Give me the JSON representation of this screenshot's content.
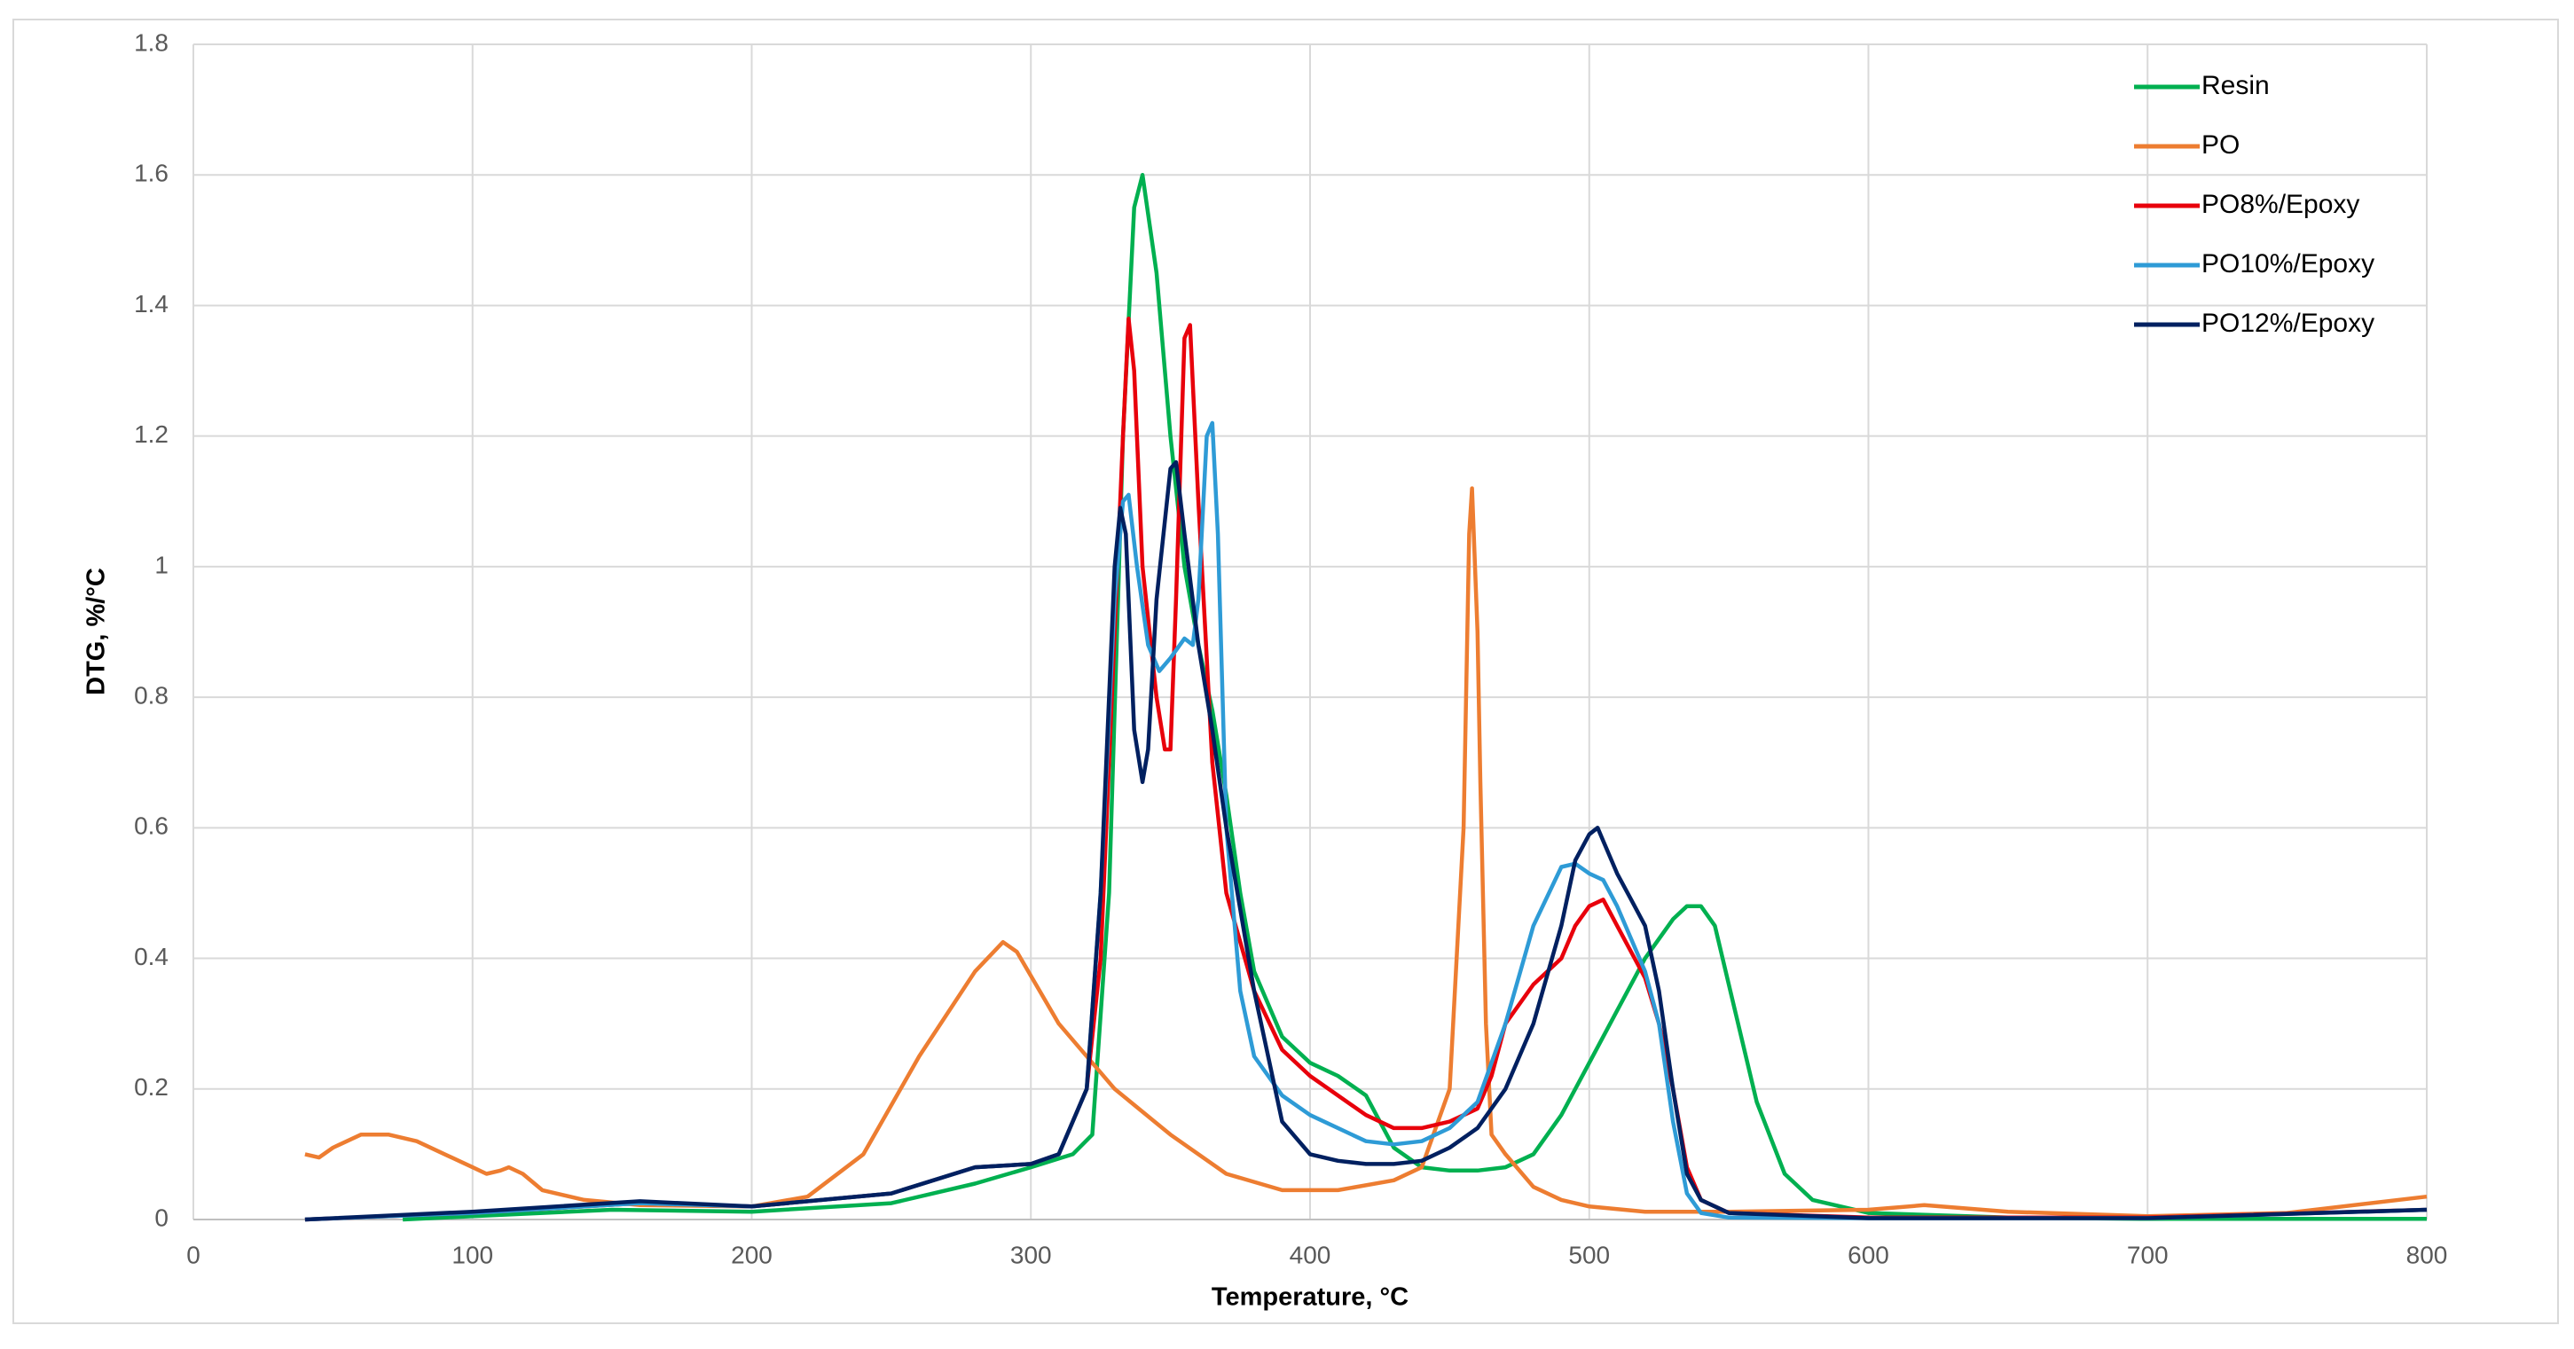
{
  "chart_data": {
    "type": "line",
    "xlabel": "Temperature, °C",
    "ylabel": "DTG, %/°C",
    "xlim": [
      0,
      800
    ],
    "xticks": [
      0,
      100,
      200,
      300,
      400,
      500,
      600,
      700,
      800
    ],
    "ylim": [
      0,
      1.8
    ],
    "yticks": [
      0,
      0.2,
      0.4,
      0.6,
      0.8,
      1,
      1.2,
      1.4,
      1.6,
      1.8
    ],
    "grid": true,
    "legend": "upper right",
    "series": [
      {
        "name": "Resin",
        "color": "#00b050",
        "x": [
          75,
          100,
          150,
          200,
          250,
          280,
          300,
          315,
          322,
          328,
          333,
          337,
          340,
          345,
          350,
          355,
          360,
          365,
          370,
          375,
          380,
          390,
          400,
          410,
          420,
          425,
          430,
          440,
          450,
          460,
          470,
          480,
          490,
          500,
          510,
          520,
          530,
          535,
          540,
          545,
          550,
          560,
          570,
          580,
          600,
          650,
          700,
          800
        ],
        "values": [
          0,
          0.005,
          0.015,
          0.012,
          0.025,
          0.055,
          0.08,
          0.1,
          0.13,
          0.5,
          1.2,
          1.55,
          1.6,
          1.45,
          1.2,
          1.0,
          0.88,
          0.78,
          0.65,
          0.5,
          0.38,
          0.28,
          0.24,
          0.22,
          0.19,
          0.15,
          0.11,
          0.08,
          0.075,
          0.075,
          0.08,
          0.1,
          0.16,
          0.24,
          0.32,
          0.4,
          0.46,
          0.48,
          0.48,
          0.45,
          0.36,
          0.18,
          0.07,
          0.03,
          0.01,
          0.003,
          0.001,
          0.001
        ]
      },
      {
        "name": "PO",
        "color": "#ed7d31",
        "x": [
          40,
          45,
          50,
          60,
          70,
          80,
          90,
          100,
          105,
          110,
          113,
          118,
          125,
          140,
          160,
          200,
          220,
          240,
          260,
          280,
          290,
          295,
          310,
          330,
          350,
          370,
          390,
          410,
          430,
          440,
          450,
          455,
          457,
          458,
          460,
          461,
          463,
          465,
          470,
          480,
          490,
          500,
          520,
          550,
          600,
          620,
          650,
          700,
          750,
          800
        ],
        "values": [
          0.1,
          0.095,
          0.11,
          0.13,
          0.13,
          0.12,
          0.1,
          0.08,
          0.07,
          0.075,
          0.08,
          0.07,
          0.045,
          0.03,
          0.022,
          0.02,
          0.035,
          0.1,
          0.25,
          0.38,
          0.425,
          0.41,
          0.3,
          0.2,
          0.13,
          0.07,
          0.045,
          0.045,
          0.06,
          0.08,
          0.2,
          0.6,
          1.05,
          1.12,
          0.9,
          0.67,
          0.3,
          0.13,
          0.1,
          0.05,
          0.03,
          0.02,
          0.012,
          0.012,
          0.015,
          0.022,
          0.012,
          0.005,
          0.01,
          0.035
        ]
      },
      {
        "name": "PO8%/Epoxy",
        "color": "#e8000b",
        "x": [
          40,
          100,
          160,
          200,
          250,
          280,
          300,
          310,
          320,
          325,
          330,
          333,
          335,
          337,
          340,
          345,
          348,
          350,
          352,
          355,
          357,
          360,
          365,
          370,
          380,
          390,
          400,
          420,
          430,
          440,
          450,
          460,
          465,
          470,
          480,
          490,
          495,
          500,
          505,
          510,
          520,
          525,
          530,
          535,
          540,
          550,
          600,
          700,
          800
        ],
        "values": [
          0,
          0.01,
          0.025,
          0.02,
          0.04,
          0.08,
          0.085,
          0.1,
          0.2,
          0.4,
          0.9,
          1.2,
          1.38,
          1.3,
          1.0,
          0.8,
          0.72,
          0.72,
          0.95,
          1.35,
          1.37,
          1.1,
          0.7,
          0.5,
          0.35,
          0.26,
          0.22,
          0.16,
          0.14,
          0.14,
          0.15,
          0.17,
          0.22,
          0.3,
          0.36,
          0.4,
          0.45,
          0.48,
          0.49,
          0.45,
          0.37,
          0.3,
          0.2,
          0.08,
          0.03,
          0.01,
          0.003,
          0.003,
          0.015
        ]
      },
      {
        "name": "PO10%/Epoxy",
        "color": "#2e9bd6",
        "x": [
          40,
          100,
          160,
          200,
          250,
          280,
          300,
          310,
          320,
          325,
          330,
          333,
          335,
          338,
          342,
          346,
          350,
          355,
          358,
          360,
          363,
          365,
          367,
          370,
          375,
          380,
          390,
          400,
          420,
          430,
          440,
          450,
          460,
          470,
          480,
          490,
          495,
          500,
          505,
          510,
          520,
          525,
          530,
          535,
          540,
          550,
          600,
          700,
          800
        ],
        "values": [
          0,
          0.01,
          0.025,
          0.02,
          0.04,
          0.08,
          0.085,
          0.1,
          0.2,
          0.5,
          0.95,
          1.1,
          1.11,
          1.0,
          0.88,
          0.84,
          0.86,
          0.89,
          0.88,
          0.95,
          1.2,
          1.22,
          1.05,
          0.6,
          0.35,
          0.25,
          0.19,
          0.16,
          0.12,
          0.115,
          0.12,
          0.14,
          0.18,
          0.3,
          0.45,
          0.54,
          0.545,
          0.53,
          0.52,
          0.48,
          0.38,
          0.3,
          0.15,
          0.04,
          0.01,
          0.003,
          0.002,
          0.002,
          0.015
        ]
      },
      {
        "name": "PO12%/Epoxy",
        "color": "#002060",
        "x": [
          40,
          100,
          160,
          200,
          250,
          280,
          300,
          310,
          320,
          325,
          330,
          332,
          334,
          337,
          340,
          342,
          345,
          350,
          352,
          355,
          360,
          365,
          370,
          380,
          390,
          400,
          410,
          420,
          430,
          440,
          450,
          460,
          470,
          480,
          490,
          495,
          500,
          503,
          505,
          510,
          515,
          520,
          525,
          530,
          535,
          540,
          550,
          600,
          700,
          800
        ],
        "values": [
          0,
          0.012,
          0.028,
          0.02,
          0.04,
          0.08,
          0.085,
          0.1,
          0.2,
          0.5,
          1.0,
          1.09,
          1.05,
          0.75,
          0.67,
          0.72,
          0.95,
          1.15,
          1.16,
          1.05,
          0.88,
          0.75,
          0.6,
          0.35,
          0.15,
          0.1,
          0.09,
          0.085,
          0.085,
          0.09,
          0.11,
          0.14,
          0.2,
          0.3,
          0.45,
          0.55,
          0.59,
          0.6,
          0.58,
          0.53,
          0.49,
          0.45,
          0.35,
          0.2,
          0.07,
          0.03,
          0.01,
          0.002,
          0.002,
          0.015
        ]
      }
    ]
  }
}
